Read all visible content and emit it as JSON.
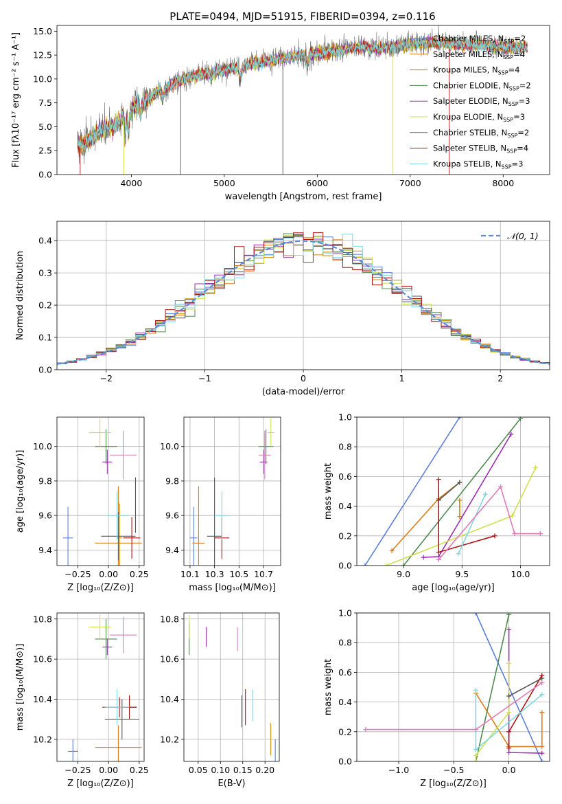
{
  "figure": {
    "title": "PLATE=0494, MJD=51915, FIBERID=0394, z=0.116"
  },
  "colors": {
    "Chabrier MILES": "#5b7fd8",
    "Salpeter MILES": "#e07b1a",
    "Kroupa MILES": "#cc8a00",
    "Chabrier ELODIE": "#4f8a4f",
    "Salpeter ELODIE": "#9a2fb0",
    "Kroupa ELODIE": "#d0e050",
    "Chabrier STELIB": "#555555",
    "Salpeter STELIB": "#b01515",
    "Kroupa STELIB": "#7fd8e0",
    "pink": "#e07ab8"
  },
  "chart_data": [
    {
      "id": "spectrum",
      "type": "line",
      "xlabel": "wavelength [Angstrom, rest frame]",
      "ylabel": "Flux [fλ10⁻¹⁷ erg cm⁻² s⁻¹ A⁻¹]",
      "xlim": [
        3200,
        8500
      ],
      "ylim": [
        0,
        15.6
      ],
      "xticks": [
        "4000",
        "5000",
        "6000",
        "7000",
        "8000"
      ],
      "yticks": [
        "0.0",
        "2.5",
        "5.0",
        "7.5",
        "10.0",
        "12.5",
        "15.0"
      ],
      "grid": false,
      "legend_position": "lower right",
      "legend": [
        {
          "label": "Chabrier MILES, N",
          "sub": "SSP",
          "tail": "=2",
          "color": "#5b7fd8"
        },
        {
          "label": "Salpeter MILES, N",
          "sub": "SSP",
          "tail": "=4",
          "color": "#e07b1a"
        },
        {
          "label": "Kroupa MILES, N",
          "sub": "SSP",
          "tail": "=4",
          "color": "#cc8a00"
        },
        {
          "label": "Chabrier ELODIE, N",
          "sub": "SSP",
          "tail": "=2",
          "color": "#4f8a4f"
        },
        {
          "label": "Salpeter ELODIE, N",
          "sub": "SSP",
          "tail": "=3",
          "color": "#9a2fb0"
        },
        {
          "label": "Kroupa ELODIE, N",
          "sub": "SSP",
          "tail": "=3",
          "color": "#d0e050"
        },
        {
          "label": "Chabrier STELIB, N",
          "sub": "SSP",
          "tail": "=2",
          "color": "#555555"
        },
        {
          "label": "Salpeter STELIB, N",
          "sub": "SSP",
          "tail": "=4",
          "color": "#b01515"
        },
        {
          "label": "Kroupa STELIB, N",
          "sub": "SSP",
          "tail": "=3",
          "color": "#7fd8e0"
        }
      ],
      "continuum_x": [
        3400,
        3500,
        3600,
        3700,
        3800,
        3900,
        4000,
        4100,
        4200,
        4300,
        4400,
        4500,
        4700,
        4900,
        5100,
        5300,
        5500,
        5700,
        5900,
        6100,
        6300,
        6500,
        6700,
        6900,
        7100,
        7300,
        7500,
        7700,
        7900,
        8100,
        8250
      ],
      "continuum_y": [
        3.3,
        3.2,
        4.0,
        4.8,
        4.9,
        5.9,
        6.8,
        7.5,
        8.0,
        8.8,
        9.2,
        9.8,
        10.4,
        10.7,
        11.2,
        11.6,
        11.9,
        12.3,
        12.5,
        12.8,
        13.1,
        13.4,
        13.2,
        13.5,
        13.7,
        13.8,
        13.6,
        13.6,
        13.4,
        13.3,
        13.4
      ]
    },
    {
      "id": "residuals",
      "type": "histogram",
      "xlabel": "(data-model)/error",
      "ylabel": "Normed distribution",
      "xlim": [
        -2.5,
        2.5
      ],
      "ylim": [
        0,
        0.46
      ],
      "xticks": [
        "−2",
        "−1",
        "0",
        "1",
        "2"
      ],
      "yticks": [
        "0.0",
        "0.1",
        "0.2",
        "0.3",
        "0.4"
      ],
      "grid": true,
      "legend_label": "𝒩(0, 1)",
      "reference_curve": "standard normal",
      "bin_width": 0.1
    },
    {
      "id": "age_vs_Z",
      "type": "scatter",
      "xlabel": "Z [log₁₀(Z/Z⊙)]",
      "ylabel": "age  [log₁₀(age/yr)]",
      "xlim": [
        -0.42,
        0.29
      ],
      "ylim": [
        9.31,
        10.17
      ],
      "xticks": [
        "−0.25",
        "0.00",
        "0.25"
      ],
      "yticks": [
        "9.4",
        "9.6",
        "9.8",
        "10.0"
      ],
      "grid": true,
      "points": [
        {
          "x": -0.33,
          "y": 9.47,
          "xerr": 0.04,
          "yerr": 0.18,
          "color": "#5b7fd8"
        },
        {
          "x": 0.08,
          "y": 9.44,
          "xerr": 0.19,
          "yerr": 0.33,
          "color": "#e07b1a"
        },
        {
          "x": 0.09,
          "y": 9.47,
          "xerr": 0.02,
          "yerr": 0.2,
          "color": "#cc8a00"
        },
        {
          "x": -0.02,
          "y": 10.0,
          "xerr": 0.09,
          "yerr": 0.1,
          "color": "#4f8a4f"
        },
        {
          "x": -0.01,
          "y": 9.91,
          "xerr": 0.04,
          "yerr": 0.07,
          "color": "#9a2fb0"
        },
        {
          "x": -0.07,
          "y": 10.08,
          "xerr": 0.09,
          "yerr": 0.08,
          "color": "#d0e050"
        },
        {
          "x": 0.08,
          "y": 9.48,
          "xerr": 0.14,
          "yerr": 0.14,
          "color": "#555555"
        },
        {
          "x": 0.19,
          "y": 9.47,
          "xerr": 0.07,
          "yerr": 0.12,
          "color": "#b01515"
        },
        {
          "x": 0.07,
          "y": 9.6,
          "xerr": 0.09,
          "yerr": 0.14,
          "color": "#7fd8e0"
        },
        {
          "x": 0.12,
          "y": 9.95,
          "xerr": 0.11,
          "yerr": 0.14,
          "color": "#e07ab8"
        },
        {
          "x": 0.22,
          "y": 9.66,
          "xerr": 0.0,
          "yerr": 0.16,
          "color": "#555555"
        }
      ]
    },
    {
      "id": "age_vs_mass",
      "type": "scatter",
      "xlabel": "mass [log₁₀(M/M⊙)]",
      "ylabel": "",
      "xlim": [
        10.05,
        10.84
      ],
      "ylim": [
        9.31,
        10.17
      ],
      "xticks": [
        "10.1",
        "10.3",
        "10.5",
        "10.7"
      ],
      "xtick_values": [
        10.1,
        10.3,
        10.5,
        10.7
      ],
      "yticks": [
        "9.4",
        "9.6",
        "9.8",
        "10.0"
      ],
      "grid": true,
      "points": [
        {
          "x": 10.13,
          "y": 9.47,
          "xerr": 0.03,
          "yerr": 0.18,
          "color": "#5b7fd8"
        },
        {
          "x": 10.17,
          "y": 9.44,
          "xerr": 0.05,
          "yerr": 0.33,
          "color": "#e07b1a"
        },
        {
          "x": 10.36,
          "y": 9.47,
          "xerr": 0.06,
          "yerr": 0.12,
          "color": "#b01515"
        },
        {
          "x": 10.3,
          "y": 9.48,
          "xerr": 0.06,
          "yerr": 0.34,
          "color": "#555555"
        },
        {
          "x": 10.36,
          "y": 9.6,
          "xerr": 0.06,
          "yerr": 0.14,
          "color": "#7fd8e0"
        },
        {
          "x": 10.72,
          "y": 10.0,
          "xerr": 0.06,
          "yerr": 0.1,
          "color": "#4f8a4f"
        },
        {
          "x": 10.7,
          "y": 9.91,
          "xerr": 0.03,
          "yerr": 0.07,
          "color": "#9a2fb0"
        },
        {
          "x": 10.76,
          "y": 10.08,
          "xerr": 0.03,
          "yerr": 0.08,
          "color": "#d0e050"
        },
        {
          "x": 10.71,
          "y": 9.95,
          "xerr": 0.05,
          "yerr": 0.14,
          "color": "#e07ab8"
        }
      ]
    },
    {
      "id": "massweight_vs_age",
      "type": "line",
      "xlabel": "age  [log₁₀(age/yr)]",
      "ylabel": "mass weight",
      "xlim": [
        8.6,
        10.25
      ],
      "ylim": [
        0,
        1.0
      ],
      "xticks": [
        "9.0",
        "9.5",
        "10.0"
      ],
      "xtick_values": [
        9.0,
        9.5,
        10.0
      ],
      "yticks": [
        "0.0",
        "0.2",
        "0.4",
        "0.6",
        "0.8",
        "1.0"
      ],
      "grid": true,
      "series": [
        {
          "color": "#5b7fd8",
          "x": [
            8.67,
            9.48
          ],
          "y": [
            0.0,
            1.0
          ]
        },
        {
          "color": "#e07b1a",
          "x": [
            8.9,
            9.3,
            9.48
          ],
          "y": [
            0.1,
            0.45,
            0.56
          ]
        },
        {
          "color": "#cc8a00",
          "x": [
            9.48,
            9.48
          ],
          "y": [
            0.33,
            0.44
          ]
        },
        {
          "color": "#4f8a4f",
          "x": [
            9.0,
            10.0
          ],
          "y": [
            0.0,
            0.99
          ]
        },
        {
          "color": "#9a2fb0",
          "x": [
            9.17,
            9.3,
            9.92
          ],
          "y": [
            0.055,
            0.06,
            0.885
          ]
        },
        {
          "color": "#d0e050",
          "x": [
            8.85,
            9.93,
            10.13
          ],
          "y": [
            0.0,
            0.335,
            0.66
          ]
        },
        {
          "color": "#555555",
          "x": [
            9.3,
            9.48
          ],
          "y": [
            0.44,
            0.56
          ]
        },
        {
          "color": "#b01515",
          "x": [
            9.3,
            9.3,
            9.78
          ],
          "y": [
            0.58,
            0.09,
            0.2
          ]
        },
        {
          "color": "#7fd8e0",
          "x": [
            9.47,
            9.7
          ],
          "y": [
            0.08,
            0.48
          ]
        },
        {
          "color": "#e07ab8",
          "x": [
            9.3,
            9.83,
            9.95,
            10.17
          ],
          "y": [
            0.04,
            0.53,
            0.215,
            0.215
          ]
        }
      ]
    },
    {
      "id": "mass_vs_Z",
      "type": "scatter",
      "xlabel": "Z [log₁₀(Z/Z⊙)]",
      "ylabel": "mass [log₁₀(M/M⊙)]",
      "xlim": [
        -0.42,
        0.29
      ],
      "ylim": [
        10.09,
        10.83
      ],
      "xticks": [
        "−0.25",
        "0.00",
        "0.25"
      ],
      "yticks": [
        "10.2",
        "10.4",
        "10.6",
        "10.8"
      ],
      "grid": true,
      "points": [
        {
          "x": -0.29,
          "y": 10.14,
          "xerr": 0.04,
          "yerr": 0.06,
          "color": "#5b7fd8"
        },
        {
          "x": 0.08,
          "y": 10.16,
          "xerr": 0.19,
          "yerr": 0.11,
          "color": "#e07b1a"
        },
        {
          "x": 0.09,
          "y": 10.36,
          "xerr": 0.14,
          "yerr": 0.05,
          "color": "#b01515"
        },
        {
          "x": 0.17,
          "y": 10.36,
          "xerr": 0.06,
          "yerr": 0.06,
          "color": "#b01515"
        },
        {
          "x": 0.11,
          "y": 10.3,
          "xerr": 0.14,
          "yerr": 0.1,
          "color": "#555555"
        },
        {
          "x": 0.07,
          "y": 10.36,
          "xerr": 0.1,
          "yerr": 0.09,
          "color": "#7fd8e0"
        },
        {
          "x": -0.02,
          "y": 10.7,
          "xerr": 0.09,
          "yerr": 0.1,
          "color": "#4f8a4f"
        },
        {
          "x": -0.01,
          "y": 10.66,
          "xerr": 0.04,
          "yerr": 0.04,
          "color": "#9a2fb0"
        },
        {
          "x": -0.07,
          "y": 10.76,
          "xerr": 0.09,
          "yerr": 0.06,
          "color": "#d0e050"
        },
        {
          "x": 0.12,
          "y": 10.72,
          "xerr": 0.11,
          "yerr": 0.09,
          "color": "#e07ab8"
        }
      ]
    },
    {
      "id": "mass_vs_EBV",
      "type": "scatter",
      "xlabel": "E(B-V)",
      "ylabel": "",
      "xlim": [
        0.018,
        0.232
      ],
      "ylim": [
        10.09,
        10.83
      ],
      "xticks": [
        "0.05",
        "0.10",
        "0.15",
        "0.20"
      ],
      "xtick_values": [
        0.05,
        0.1,
        0.15,
        0.2
      ],
      "yticks": [
        "10.2",
        "10.4",
        "10.6",
        "10.8"
      ],
      "grid": true,
      "points": [
        {
          "x": 0.223,
          "y": 10.14,
          "xerr": 0.0,
          "yerr": 0.06,
          "color": "#5b7fd8"
        },
        {
          "x": 0.213,
          "y": 10.2,
          "xerr": 0.0,
          "yerr": 0.08,
          "color": "#cc8a00"
        },
        {
          "x": 0.03,
          "y": 10.7,
          "xerr": 0.0,
          "yerr": 0.08,
          "color": "#4f8a4f"
        },
        {
          "x": 0.03,
          "y": 10.76,
          "xerr": 0.0,
          "yerr": 0.06,
          "color": "#d0e050"
        },
        {
          "x": 0.068,
          "y": 10.71,
          "xerr": 0.0,
          "yerr": 0.05,
          "color": "#9a2fb0"
        },
        {
          "x": 0.138,
          "y": 10.7,
          "xerr": 0.0,
          "yerr": 0.06,
          "color": "#e07ab8"
        },
        {
          "x": 0.148,
          "y": 10.34,
          "xerr": 0.0,
          "yerr": 0.08,
          "color": "#555555"
        },
        {
          "x": 0.156,
          "y": 10.36,
          "xerr": 0.0,
          "yerr": 0.09,
          "color": "#b01515"
        },
        {
          "x": 0.172,
          "y": 10.37,
          "xerr": 0.0,
          "yerr": 0.08,
          "color": "#7fd8e0"
        }
      ]
    },
    {
      "id": "massweight_vs_Z",
      "type": "line",
      "xlabel": "Z [log₁₀(Z/Z⊙)]",
      "ylabel": "mass weight",
      "xlim": [
        -1.38,
        0.37
      ],
      "ylim": [
        0,
        1.0
      ],
      "xticks": [
        "−1.0",
        "−0.5",
        "0.0"
      ],
      "xtick_values": [
        -1.0,
        -0.5,
        0.0
      ],
      "yticks": [
        "0.0",
        "0.2",
        "0.4",
        "0.6",
        "0.8",
        "1.0"
      ],
      "grid": true,
      "series": [
        {
          "color": "#5b7fd8",
          "x": [
            -0.3,
            0.3
          ],
          "y": [
            1.0,
            0.0
          ]
        },
        {
          "color": "#e07b1a",
          "x": [
            -0.3,
            0.0,
            0.3,
            0.3
          ],
          "y": [
            0.46,
            0.1,
            0.1,
            0.33
          ]
        },
        {
          "color": "#4f8a4f",
          "x": [
            -0.3,
            0.0
          ],
          "y": [
            0.0,
            0.99
          ]
        },
        {
          "color": "#9a2fb0",
          "x": [
            0.0,
            0.0,
            0.3
          ],
          "y": [
            0.89,
            0.06,
            0.055
          ]
        },
        {
          "color": "#d0e050",
          "x": [
            -0.3,
            -0.3,
            0.0,
            0.0
          ],
          "y": [
            0.0,
            0.04,
            0.33,
            0.66
          ]
        },
        {
          "color": "#555555",
          "x": [
            0.0,
            0.3
          ],
          "y": [
            0.44,
            0.56
          ]
        },
        {
          "color": "#b01515",
          "x": [
            0.0,
            0.0,
            0.3
          ],
          "y": [
            0.09,
            0.2,
            0.58
          ]
        },
        {
          "color": "#7fd8e0",
          "x": [
            -0.3,
            -0.3,
            0.3
          ],
          "y": [
            0.48,
            0.08,
            0.45
          ]
        },
        {
          "color": "#e07ab8",
          "x": [
            -1.3,
            -0.3,
            0.3
          ],
          "y": [
            0.215,
            0.215,
            0.53
          ]
        }
      ]
    }
  ]
}
